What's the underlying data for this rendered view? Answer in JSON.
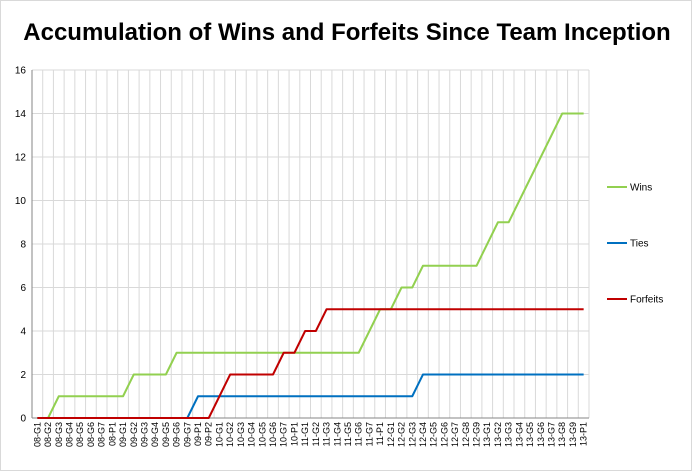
{
  "chart_data": {
    "type": "line",
    "title": "Accumulation of Wins and Forfeits Since Team Inception",
    "xlabel": "",
    "ylabel": "",
    "ylim": [
      0,
      16
    ],
    "yticks": [
      0,
      2,
      4,
      6,
      8,
      10,
      12,
      14,
      16
    ],
    "grid": "vertical and horizontal gridlines",
    "legend_position": "right",
    "categories": [
      "08-G1",
      "08-G2",
      "08-G3",
      "08-G4",
      "08-G5",
      "08-G6",
      "08-G7",
      "08-P1",
      "09-G1",
      "09-G2",
      "09-G3",
      "09-G4",
      "09-G5",
      "09-G6",
      "09-G7",
      "09-P1",
      "09-P2",
      "10-G1",
      "10-G2",
      "10-G3",
      "10-G4",
      "10-G5",
      "10-G6",
      "10-G7",
      "10-P1",
      "11-G1",
      "11-G2",
      "11-G3",
      "11-G4",
      "11-G5",
      "11-G6",
      "11-G7",
      "11-P1",
      "12-G1",
      "12-G2",
      "12-G3",
      "12-G4",
      "12-G5",
      "12-G6",
      "12-G7",
      "12-G8",
      "12-G9",
      "13-G1",
      "13-G2",
      "13-G3",
      "13-G4",
      "13-G5",
      "13-G6",
      "13-G7",
      "13-G8",
      "13-G9",
      "13-P1"
    ],
    "series": [
      {
        "name": "Wins",
        "color": "#92d050",
        "values": [
          0,
          0,
          1,
          1,
          1,
          1,
          1,
          1,
          1,
          2,
          2,
          2,
          2,
          3,
          3,
          3,
          3,
          3,
          3,
          3,
          3,
          3,
          3,
          3,
          3,
          3,
          3,
          3,
          3,
          3,
          3,
          4,
          5,
          5,
          6,
          6,
          7,
          7,
          7,
          7,
          7,
          7,
          8,
          9,
          9,
          10,
          11,
          12,
          13,
          14,
          14,
          14
        ]
      },
      {
        "name": "Ties",
        "color": "#0070c0",
        "values": [
          0,
          0,
          0,
          0,
          0,
          0,
          0,
          0,
          0,
          0,
          0,
          0,
          0,
          0,
          0,
          1,
          1,
          1,
          1,
          1,
          1,
          1,
          1,
          1,
          1,
          1,
          1,
          1,
          1,
          1,
          1,
          1,
          1,
          1,
          1,
          1,
          2,
          2,
          2,
          2,
          2,
          2,
          2,
          2,
          2,
          2,
          2,
          2,
          2,
          2,
          2,
          2
        ]
      },
      {
        "name": "Forfeits",
        "color": "#c00000",
        "values": [
          0,
          0,
          0,
          0,
          0,
          0,
          0,
          0,
          0,
          0,
          0,
          0,
          0,
          0,
          0,
          0,
          0,
          1,
          2,
          2,
          2,
          2,
          2,
          3,
          3,
          4,
          4,
          5,
          5,
          5,
          5,
          5,
          5,
          5,
          5,
          5,
          5,
          5,
          5,
          5,
          5,
          5,
          5,
          5,
          5,
          5,
          5,
          5,
          5,
          5,
          5,
          5
        ]
      }
    ]
  }
}
